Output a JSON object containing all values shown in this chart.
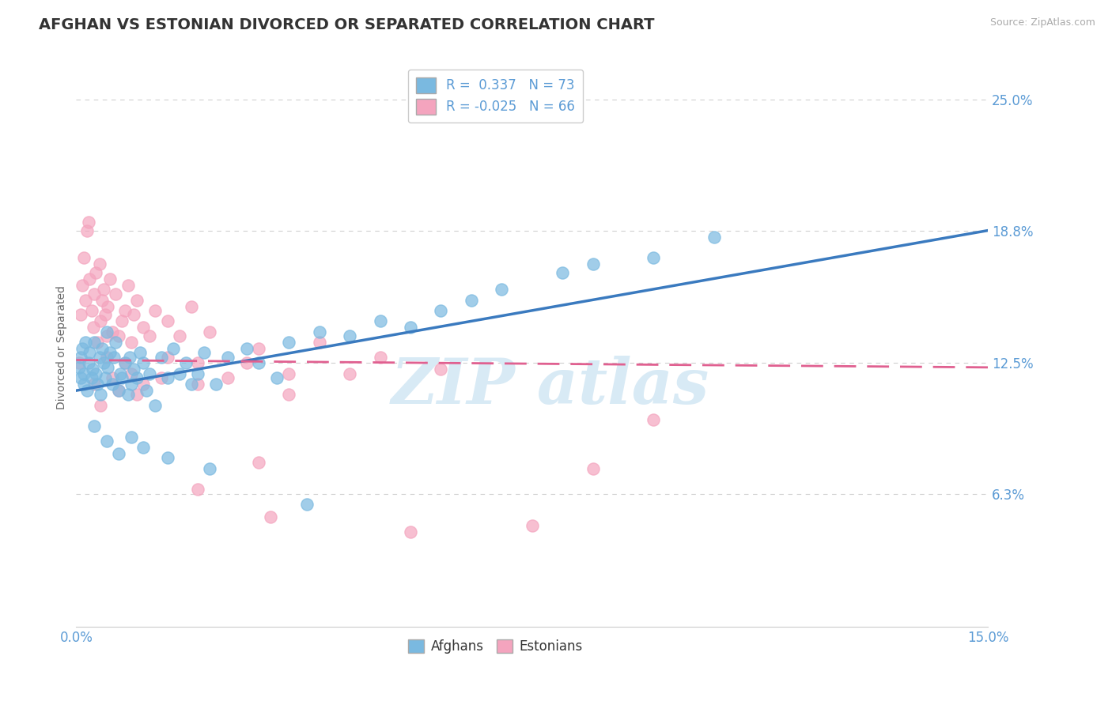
{
  "title": "AFGHAN VS ESTONIAN DIVORCED OR SEPARATED CORRELATION CHART",
  "source": "Source: ZipAtlas.com",
  "xlabel": "",
  "ylabel": "Divorced or Separated",
  "xlim": [
    0.0,
    15.0
  ],
  "ylim": [
    0.0,
    26.5
  ],
  "yticks": [
    6.3,
    12.5,
    18.8,
    25.0
  ],
  "yticklabels": [
    "6.3%",
    "12.5%",
    "18.8%",
    "25.0%"
  ],
  "afghan_color": "#7ab9e0",
  "estonian_color": "#f4a4be",
  "trend_afghan_color": "#3a7abf",
  "trend_estonian_color": "#e06090",
  "R_afghan": 0.337,
  "N_afghan": 73,
  "R_estonian": -0.025,
  "N_estonian": 66,
  "title_fontsize": 14,
  "axis_color": "#5b9bd5",
  "background_color": "#ffffff",
  "grid_color": "#d0d0d0",
  "legend_label_afghan": "Afghans",
  "legend_label_estonian": "Estonians",
  "afghan_trend_x0": 0.0,
  "afghan_trend_y0": 11.2,
  "afghan_trend_x1": 15.0,
  "afghan_trend_y1": 18.8,
  "estonian_trend_x0": 0.0,
  "estonian_trend_y0": 12.65,
  "estonian_trend_x1": 15.0,
  "estonian_trend_y1": 12.3,
  "afghan_scatter_x": [
    0.05,
    0.07,
    0.08,
    0.1,
    0.12,
    0.13,
    0.15,
    0.18,
    0.2,
    0.22,
    0.25,
    0.27,
    0.3,
    0.32,
    0.35,
    0.38,
    0.4,
    0.42,
    0.45,
    0.48,
    0.5,
    0.52,
    0.55,
    0.6,
    0.62,
    0.65,
    0.7,
    0.72,
    0.75,
    0.8,
    0.85,
    0.88,
    0.9,
    0.95,
    1.0,
    1.05,
    1.1,
    1.15,
    1.2,
    1.3,
    1.4,
    1.5,
    1.6,
    1.7,
    1.8,
    1.9,
    2.0,
    2.1,
    2.3,
    2.5,
    2.8,
    3.0,
    3.3,
    3.5,
    4.0,
    4.5,
    5.0,
    5.5,
    6.0,
    6.5,
    7.0,
    8.0,
    8.5,
    9.5,
    10.5,
    0.3,
    0.5,
    0.7,
    0.9,
    1.1,
    1.5,
    2.2,
    3.8
  ],
  "afghan_scatter_y": [
    12.3,
    11.8,
    12.8,
    13.2,
    11.5,
    12.0,
    13.5,
    11.2,
    12.5,
    13.0,
    11.8,
    12.2,
    13.5,
    12.0,
    11.5,
    12.8,
    11.0,
    13.2,
    12.5,
    11.8,
    14.0,
    12.3,
    13.0,
    11.5,
    12.8,
    13.5,
    11.2,
    12.0,
    11.8,
    12.5,
    11.0,
    12.8,
    11.5,
    12.2,
    11.8,
    13.0,
    12.5,
    11.2,
    12.0,
    10.5,
    12.8,
    11.8,
    13.2,
    12.0,
    12.5,
    11.5,
    12.0,
    13.0,
    11.5,
    12.8,
    13.2,
    12.5,
    11.8,
    13.5,
    14.0,
    13.8,
    14.5,
    14.2,
    15.0,
    15.5,
    16.0,
    16.8,
    17.2,
    17.5,
    18.5,
    9.5,
    8.8,
    8.2,
    9.0,
    8.5,
    8.0,
    7.5,
    5.8
  ],
  "estonian_scatter_x": [
    0.05,
    0.08,
    0.1,
    0.12,
    0.15,
    0.18,
    0.2,
    0.22,
    0.25,
    0.28,
    0.3,
    0.32,
    0.35,
    0.38,
    0.4,
    0.42,
    0.45,
    0.48,
    0.5,
    0.52,
    0.55,
    0.6,
    0.65,
    0.7,
    0.75,
    0.8,
    0.85,
    0.9,
    0.95,
    1.0,
    1.1,
    1.2,
    1.3,
    1.5,
    1.7,
    1.9,
    2.0,
    2.2,
    2.5,
    3.0,
    3.5,
    4.0,
    5.0,
    6.0,
    0.3,
    0.5,
    0.7,
    0.9,
    1.1,
    1.5,
    2.0,
    2.8,
    3.5,
    4.5,
    0.4,
    0.6,
    0.8,
    1.0,
    1.4,
    2.0,
    3.0,
    5.5,
    7.5,
    8.5,
    9.5,
    3.2
  ],
  "estonian_scatter_y": [
    12.5,
    14.8,
    16.2,
    17.5,
    15.5,
    18.8,
    19.2,
    16.5,
    15.0,
    14.2,
    15.8,
    16.8,
    13.5,
    17.2,
    14.5,
    15.5,
    16.0,
    14.8,
    13.8,
    15.2,
    16.5,
    14.0,
    15.8,
    13.8,
    14.5,
    15.0,
    16.2,
    13.5,
    14.8,
    15.5,
    14.2,
    13.8,
    15.0,
    14.5,
    13.8,
    15.2,
    12.5,
    14.0,
    11.8,
    13.2,
    12.0,
    13.5,
    12.8,
    12.2,
    11.5,
    12.8,
    11.2,
    12.0,
    11.5,
    12.8,
    11.5,
    12.5,
    11.0,
    12.0,
    10.5,
    11.8,
    12.5,
    11.0,
    11.8,
    6.5,
    7.8,
    4.5,
    4.8,
    7.5,
    9.8,
    5.2
  ]
}
